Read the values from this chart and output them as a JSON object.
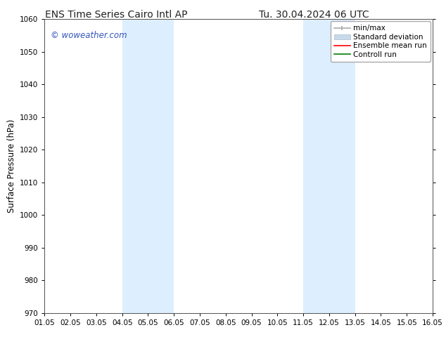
{
  "title_left": "ENS Time Series Cairo Intl AP",
  "title_right": "Tu. 30.04.2024 06 UTC",
  "ylabel": "Surface Pressure (hPa)",
  "ylim": [
    970,
    1060
  ],
  "yticks": [
    970,
    980,
    990,
    1000,
    1010,
    1020,
    1030,
    1040,
    1050,
    1060
  ],
  "xtick_labels": [
    "01.05",
    "02.05",
    "03.05",
    "04.05",
    "05.05",
    "06.05",
    "07.05",
    "08.05",
    "09.05",
    "10.05",
    "11.05",
    "12.05",
    "13.05",
    "14.05",
    "15.05",
    "16.05"
  ],
  "xtick_positions": [
    0,
    1,
    2,
    3,
    4,
    5,
    6,
    7,
    8,
    9,
    10,
    11,
    12,
    13,
    14,
    15
  ],
  "shaded_regions": [
    {
      "x_start": 3,
      "x_end": 5,
      "color": "#ddeeff"
    },
    {
      "x_start": 10,
      "x_end": 12,
      "color": "#ddeeff"
    }
  ],
  "watermark_text": "© woweather.com",
  "watermark_color": "#3355bb",
  "background_color": "#ffffff",
  "legend_items": [
    {
      "label": "min/max",
      "color": "#aaaaaa"
    },
    {
      "label": "Standard deviation",
      "color": "#c8daea"
    },
    {
      "label": "Ensemble mean run",
      "color": "red"
    },
    {
      "label": "Controll run",
      "color": "green"
    }
  ],
  "title_fontsize": 10,
  "tick_fontsize": 7.5,
  "ylabel_fontsize": 8.5,
  "watermark_fontsize": 8.5,
  "legend_fontsize": 7.5,
  "border_color": "#555555"
}
